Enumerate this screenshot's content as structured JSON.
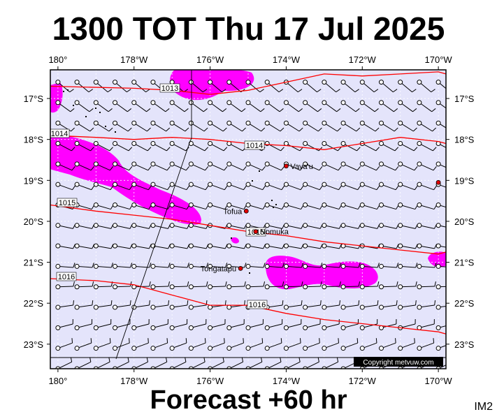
{
  "header": {
    "title": "1300 TOT Thu 17 Jul 2025"
  },
  "footer": {
    "forecast": "Forecast +60 hr",
    "image_tag": "IM2",
    "copyright": "Copyright metvuw.com"
  },
  "map": {
    "lon_range": [
      -180.2,
      -169.8
    ],
    "lat_range": [
      -23.6,
      -16.3
    ],
    "lon_ticks": [
      "180°",
      "178°W",
      "176°W",
      "174°W",
      "172°W",
      "170°W"
    ],
    "lat_ticks": [
      "17°S",
      "18°S",
      "19°S",
      "20°S",
      "21°S",
      "22°S",
      "23°S"
    ],
    "colors": {
      "background": "#e4e4fb",
      "precip": "#ff00ff",
      "isobar": "#ff0000",
      "land": "#000000"
    },
    "isobars": [
      {
        "label": "1013",
        "points": [
          [
            -180.2,
            -16.7
          ],
          [
            -178,
            -16.75
          ],
          [
            -177,
            -16.8
          ],
          [
            -176,
            -16.9
          ],
          [
            -175,
            -16.8
          ],
          [
            -174,
            -16.6
          ],
          [
            -173,
            -16.4
          ],
          [
            -172,
            -16.45
          ],
          [
            -171,
            -16.4
          ],
          [
            -170,
            -16.35
          ],
          [
            -169.8,
            -16.4
          ]
        ]
      },
      {
        "label": "1014",
        "points": [
          [
            -180.2,
            -17.9
          ],
          [
            -179,
            -17.95
          ],
          [
            -178,
            -18.0
          ],
          [
            -177,
            -17.95
          ],
          [
            -176,
            -18.0
          ],
          [
            -175,
            -18.1
          ],
          [
            -174,
            -18.15
          ],
          [
            -173,
            -18.25
          ],
          [
            -172,
            -18.1
          ],
          [
            -171,
            -17.95
          ],
          [
            -170,
            -18.05
          ],
          [
            -169.8,
            -18.1
          ]
        ]
      },
      {
        "label": "1015",
        "points": [
          [
            -180.2,
            -19.6
          ],
          [
            -179,
            -19.75
          ],
          [
            -178,
            -19.85
          ],
          [
            -177,
            -19.95
          ],
          [
            -176,
            -20.1
          ],
          [
            -175,
            -20.25
          ],
          [
            -174,
            -20.35
          ],
          [
            -173,
            -20.5
          ],
          [
            -172,
            -20.6
          ],
          [
            -171,
            -20.7
          ],
          [
            -170,
            -20.8
          ],
          [
            -169.8,
            -20.75
          ]
        ]
      },
      {
        "label": "1016",
        "points": [
          [
            -180.2,
            -21.4
          ],
          [
            -179,
            -21.45
          ],
          [
            -178,
            -21.55
          ],
          [
            -177,
            -21.8
          ],
          [
            -176,
            -22.05
          ],
          [
            -175,
            -22.05
          ],
          [
            -174,
            -22.25
          ],
          [
            -173,
            -22.4
          ],
          [
            -172,
            -22.5
          ],
          [
            -171,
            -22.6
          ],
          [
            -170,
            -22.7
          ],
          [
            -169.8,
            -22.75
          ]
        ]
      }
    ],
    "places": [
      {
        "name": "Vava'u",
        "lon": -174.0,
        "lat": -18.65
      },
      {
        "name": "Tofua",
        "lon": -175.05,
        "lat": -19.75
      },
      {
        "name": "Nomuka",
        "lon": -174.8,
        "lat": -20.25
      },
      {
        "name": "Tongatapu",
        "lon": -175.2,
        "lat": -21.15
      }
    ]
  }
}
